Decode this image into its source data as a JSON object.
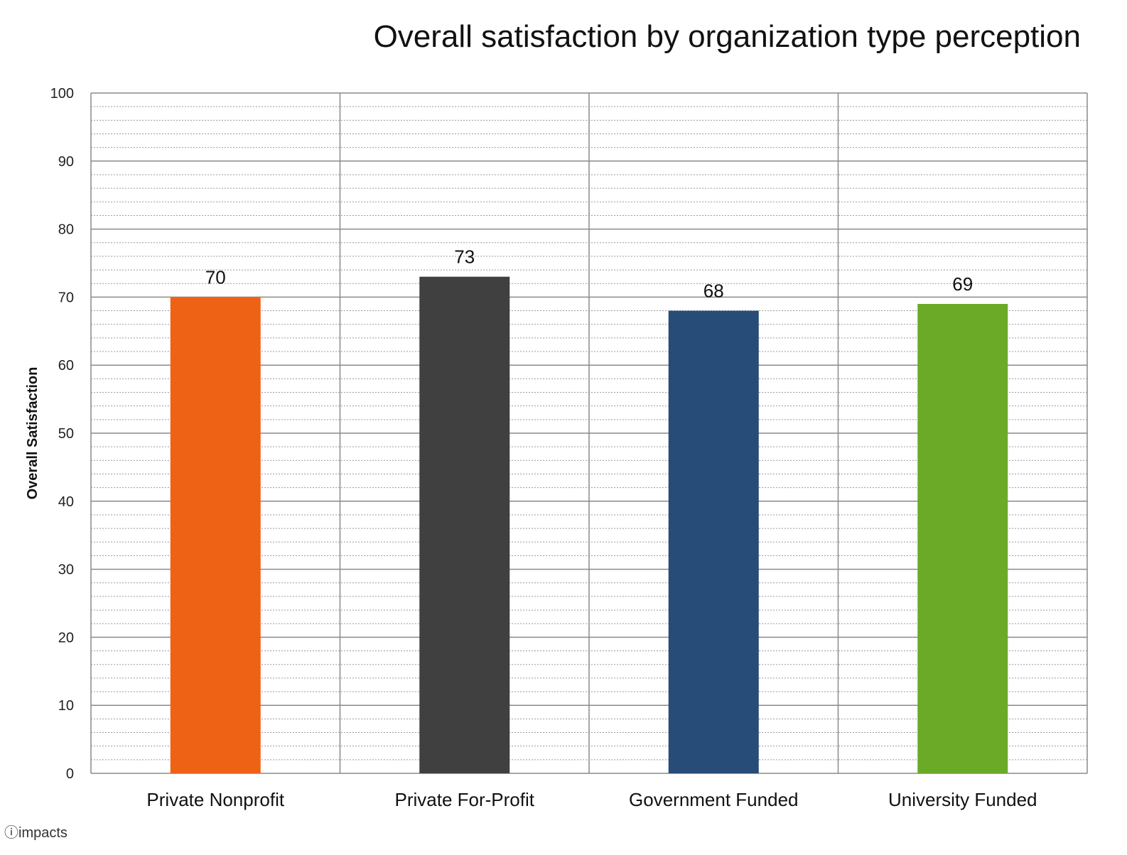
{
  "chart_data": {
    "type": "bar",
    "title": "Overall satisfaction by organization type perception",
    "xlabel": "",
    "ylabel": "Overall Satisfaction",
    "ylim": [
      0,
      100
    ],
    "yticks": [
      "0",
      "10",
      "20",
      "30",
      "40",
      "50",
      "60",
      "70",
      "80",
      "90",
      "100"
    ],
    "categories": [
      "Private Nonprofit",
      "Private For-Profit",
      "Government Funded",
      "University Funded"
    ],
    "values": [
      70,
      73,
      68,
      69
    ],
    "value_labels": [
      "70",
      "73",
      "68",
      "69"
    ],
    "colors": [
      "#ee6215",
      "#404040",
      "#264c77",
      "#6aaa27"
    ],
    "grid": true,
    "legend": "none"
  },
  "logo": {
    "text": "impacts"
  }
}
